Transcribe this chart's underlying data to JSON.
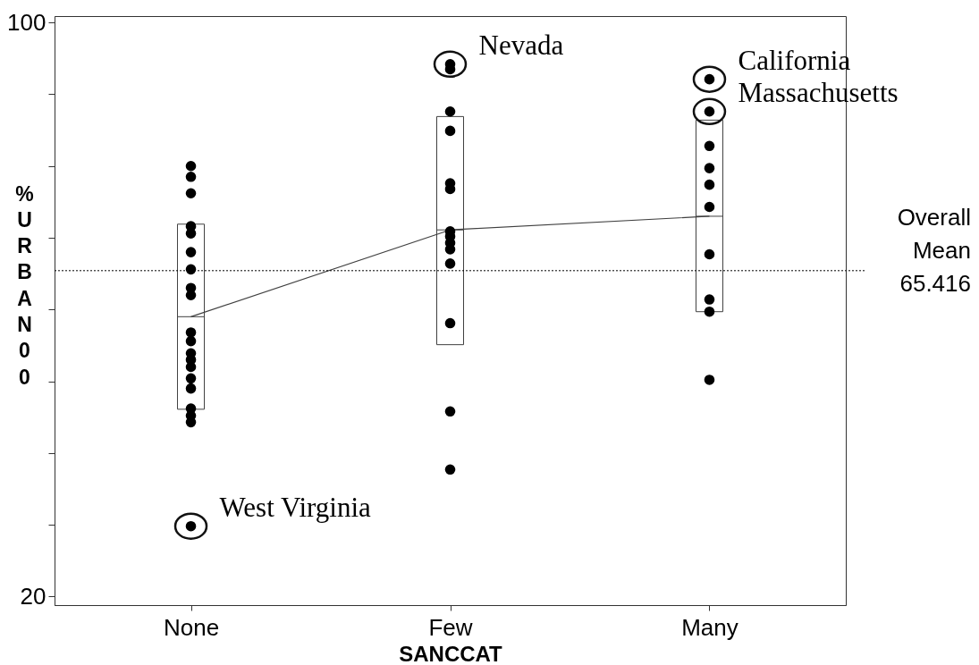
{
  "chart_data": {
    "type": "scatter",
    "xlabel": "SANCCAT",
    "ylabel": "%URBAN00",
    "categories": [
      "None",
      "Few",
      "Many"
    ],
    "ylim": [
      18.8,
      100.9
    ],
    "yticks": [
      20,
      {
        "value": 30,
        "label": null
      },
      {
        "value": 40,
        "label": null
      },
      {
        "value": 50,
        "label": null
      },
      {
        "value": 60,
        "label": null
      },
      {
        "value": 70,
        "label": null
      },
      {
        "value": 80,
        "label": null
      },
      {
        "value": 90,
        "label": null
      },
      100
    ],
    "grid": false,
    "series": [
      {
        "type": "box",
        "color": "#404040",
        "boxes": [
          {
            "low": 46.1,
            "q1": 46.1,
            "median": 59.0,
            "q3": 71.9,
            "high": 71.9
          },
          {
            "low": 55.1,
            "q1": 55.1,
            "median": 71.1,
            "q3": 86.9,
            "high": 86.9
          },
          {
            "low": 59.7,
            "q1": 59.7,
            "median": 73.0,
            "q3": 86.4,
            "high": 86.4
          }
        ]
      },
      {
        "type": "line",
        "color": "#404040",
        "marker": "none",
        "line_style": "solid",
        "values": [
          59.0,
          71.1,
          73.0
        ]
      },
      {
        "color": "#000000",
        "marker": "circle",
        "x": [
          "None",
          "None",
          "None",
          "None",
          "None",
          "None",
          "None",
          "None",
          "None",
          "None",
          "None",
          "None",
          "None",
          "None",
          "None",
          "None",
          "None",
          "None",
          "None",
          "None",
          "Few",
          "Few",
          "Few",
          "Few",
          "Few",
          "Few",
          "Few",
          "Few",
          "Few",
          "Few",
          "Few",
          "Few",
          "Few",
          "Few",
          "Many",
          "Many",
          "Many",
          "Many",
          "Many",
          "Many",
          "Many",
          "Many",
          "Many",
          "Many"
        ],
        "values": [
          80.0,
          78.5,
          76.2,
          71.6,
          70.6,
          68.0,
          65.6,
          63.0,
          62.0,
          56.8,
          55.6,
          53.9,
          53.0,
          52.0,
          50.4,
          49.0,
          46.2,
          45.2,
          44.3,
          29.8,
          94.2,
          93.5,
          87.6,
          84.9,
          77.6,
          76.8,
          70.9,
          70.2,
          69.3,
          68.4,
          66.4,
          58.1,
          45.8,
          37.7,
          92.1,
          87.6,
          82.8,
          79.7,
          77.4,
          74.3,
          67.7,
          61.4,
          59.7,
          50.2
        ]
      }
    ],
    "ref_lines": [
      {
        "axis": "y",
        "value": 65.416,
        "label": "Overall Mean 65.416",
        "line_style": "dotted",
        "color": "#000000"
      }
    ],
    "annotations": [
      {
        "text": "Nevada",
        "x": "Few",
        "y": 94.2
      },
      {
        "text": "California",
        "x": "Many",
        "y": 92.1
      },
      {
        "text": "Massachusetts",
        "x": "Many",
        "y": 87.6
      },
      {
        "text": "West Virginia",
        "x": "None",
        "y": 29.8
      }
    ]
  }
}
